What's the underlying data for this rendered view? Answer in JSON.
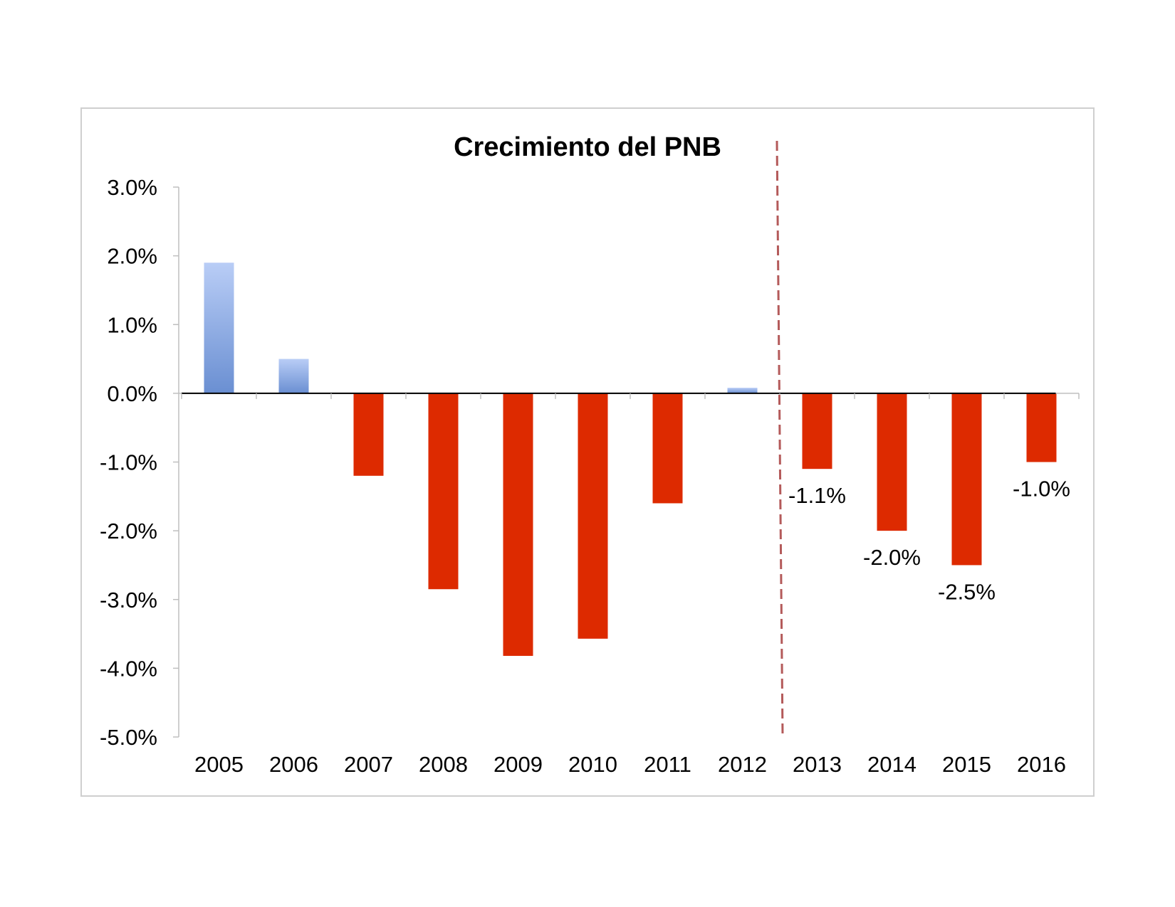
{
  "chart_data": {
    "type": "bar",
    "title": "Crecimiento del PNB",
    "xlabel": "",
    "ylabel": "",
    "categories": [
      "2005",
      "2006",
      "2007",
      "2008",
      "2009",
      "2010",
      "2011",
      "2012",
      "2013",
      "2014",
      "2015",
      "2016"
    ],
    "values": [
      1.9,
      0.5,
      -1.2,
      -2.85,
      -3.82,
      -3.57,
      -1.6,
      0.08,
      -1.1,
      -2.0,
      -2.5,
      -1.0
    ],
    "ylim": [
      -5.0,
      3.0
    ],
    "yticks": [
      3.0,
      2.0,
      1.0,
      0.0,
      -1.0,
      -2.0,
      -3.0,
      -4.0,
      -5.0
    ],
    "ytick_labels": [
      "3.0%",
      "2.0%",
      "1.0%",
      "0.0%",
      "-1.0%",
      "-2.0%",
      "-3.0%",
      "-4.0%",
      "-5.0%"
    ],
    "data_labels": [
      {
        "category": "2013",
        "text": "-1.1%"
      },
      {
        "category": "2014",
        "text": "-2.0%"
      },
      {
        "category": "2015",
        "text": "-2.5%"
      },
      {
        "category": "2016",
        "text": "-1.0%"
      }
    ],
    "divider_after_category": "2012",
    "grid": false,
    "colors": {
      "positive_top": "#b9cdf6",
      "positive_bottom": "#6a8fd2",
      "negative": "#dd2a00",
      "divider": "#b45a5a",
      "axis": "#000000",
      "axis_light": "#bfbfbf"
    }
  }
}
